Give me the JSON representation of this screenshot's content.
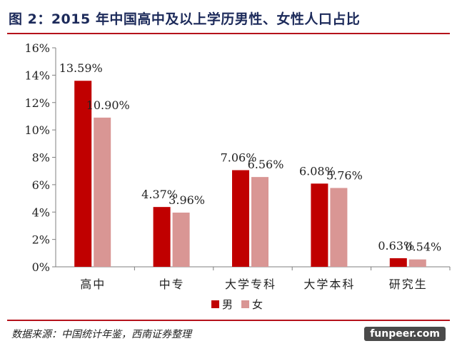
{
  "header": {
    "title": "图 2：2015 年中国高中及以上学历男性、女性人口占比"
  },
  "footer": {
    "source": "数据来源：中国统计年鉴，西南证券整理",
    "watermark": "funpeer.com"
  },
  "colors": {
    "male": "#c00000",
    "female": "#d99694",
    "rule": "#b5121b",
    "title": "#1c2a5a"
  },
  "chart_data": {
    "type": "bar",
    "title": "图 2：2015 年中国高中及以上学历男性、女性人口占比",
    "xlabel": "",
    "ylabel": "",
    "categories": [
      "高中",
      "中专",
      "大学专科",
      "大学本科",
      "研究生"
    ],
    "series": [
      {
        "name": "男",
        "values": [
          13.59,
          4.37,
          7.06,
          6.08,
          0.63
        ],
        "labels": [
          "13.59%",
          "4.37%",
          "7.06%",
          "6.08%",
          "0.63%"
        ]
      },
      {
        "name": "女",
        "values": [
          10.9,
          3.96,
          6.56,
          5.76,
          0.54
        ],
        "labels": [
          "10.90%",
          "3.96%",
          "6.56%",
          "5.76%",
          "0.54%"
        ]
      }
    ],
    "ylim": [
      0,
      16
    ],
    "yticks": [
      0,
      2,
      4,
      6,
      8,
      10,
      12,
      14,
      16
    ],
    "ytick_labels": [
      "0%",
      "2%",
      "4%",
      "6%",
      "8%",
      "10%",
      "12%",
      "14%",
      "16%"
    ],
    "grid": false,
    "legend": "bottom-center"
  }
}
